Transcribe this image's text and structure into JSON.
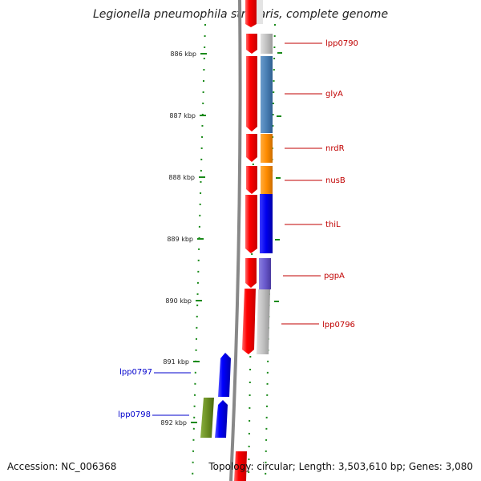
{
  "title": "Legionella pneumophila str. Paris, complete genome",
  "footer": {
    "accession": "Accession: NC_006368",
    "summary": "Topology: circular; Length: 3,503,610 bp; Genes: 3,080"
  },
  "ticks": [
    "886 kbp",
    "887 kbp",
    "888 kbp",
    "889 kbp",
    "890 kbp",
    "891 kbp",
    "892 kbp"
  ],
  "genes": [
    {
      "name": "lpp0790",
      "color": "#c00000"
    },
    {
      "name": "glyA",
      "color": "#c00000"
    },
    {
      "name": "nrdR",
      "color": "#c00000"
    },
    {
      "name": "nusB",
      "color": "#c00000"
    },
    {
      "name": "thiL",
      "color": "#c00000"
    },
    {
      "name": "pgpA",
      "color": "#c00000"
    },
    {
      "name": "lpp0796",
      "color": "#c00000"
    },
    {
      "name": "lpp0797",
      "color": "#0000cc"
    },
    {
      "name": "lpp0798",
      "color": "#0000cc"
    }
  ],
  "colors": {
    "forward_cds": "#ff0000",
    "reverse_cds": "#0000ff",
    "backbone": "#888888",
    "tick": "#1a8a1a"
  }
}
